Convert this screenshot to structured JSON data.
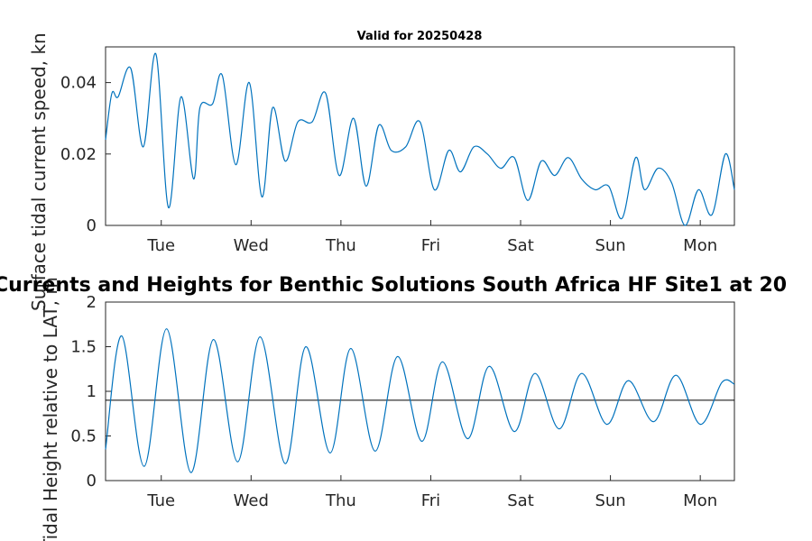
{
  "page": {
    "title": "Valid for 20250428",
    "main_title": "Currents and Heights for Benthic Solutions South Africa HF Site1 at 20"
  },
  "colors": {
    "series": "#0072bd",
    "reference_line": "#000000",
    "axes": "#262626",
    "background": "#ffffff"
  },
  "chart_data": [
    {
      "type": "line",
      "title": "Valid for 20250428",
      "ylabel": "Surface tidal current speed, kn",
      "xlabel": "",
      "x_unit": "days from start of window",
      "xlim": [
        0,
        7.0
      ],
      "ylim": [
        0,
        0.05
      ],
      "yticks": [
        0,
        0.02,
        0.04
      ],
      "ytick_labels": [
        "0",
        "0.02",
        "0.04"
      ],
      "xticks": [
        0.62,
        1.62,
        2.62,
        3.62,
        4.62,
        5.62,
        6.62
      ],
      "xtick_labels": [
        "Tue",
        "Wed",
        "Thu",
        "Fri",
        "Sat",
        "Sun",
        "Mon"
      ],
      "grid": false,
      "series": [
        {
          "x": [
            0,
            0.07,
            0.14,
            0.28,
            0.42,
            0.56,
            0.7,
            0.84,
            0.98,
            1.05,
            1.19,
            1.3,
            1.45,
            1.6,
            1.74,
            1.86,
            2.0,
            2.14,
            2.3,
            2.45,
            2.6,
            2.76,
            2.9,
            3.04,
            3.18,
            3.34,
            3.5,
            3.66,
            3.82,
            3.95,
            4.1,
            4.25,
            4.4,
            4.55,
            4.7,
            4.85,
            5.0,
            5.15,
            5.3,
            5.45,
            5.6,
            5.75,
            5.9,
            6.0,
            6.15,
            6.3,
            6.45,
            6.6,
            6.75,
            6.9,
            7.0
          ],
          "y": [
            0.024,
            0.037,
            0.036,
            0.044,
            0.022,
            0.048,
            0.005,
            0.036,
            0.013,
            0.033,
            0.034,
            0.042,
            0.017,
            0.04,
            0.008,
            0.033,
            0.018,
            0.029,
            0.029,
            0.037,
            0.014,
            0.03,
            0.011,
            0.028,
            0.021,
            0.022,
            0.029,
            0.01,
            0.021,
            0.015,
            0.022,
            0.02,
            0.016,
            0.019,
            0.007,
            0.018,
            0.014,
            0.019,
            0.013,
            0.01,
            0.011,
            0.002,
            0.019,
            0.01,
            0.016,
            0.012,
            0.0,
            0.01,
            0.003,
            0.02,
            0.01
          ]
        }
      ]
    },
    {
      "type": "line",
      "title": "Currents and Heights for Benthic Solutions South Africa HF Site1 at 20",
      "ylabel": "Tidal Height relative to LAT, m",
      "xlabel": "",
      "x_unit": "days from start of window",
      "xlim": [
        0,
        7.0
      ],
      "ylim": [
        0,
        2
      ],
      "yticks": [
        0,
        0.5,
        1,
        1.5,
        2
      ],
      "ytick_labels": [
        "0",
        "0.5",
        "1",
        "1.5",
        "2"
      ],
      "xticks": [
        0.62,
        1.62,
        2.62,
        3.62,
        4.62,
        5.62,
        6.62
      ],
      "xtick_labels": [
        "Tue",
        "Wed",
        "Thu",
        "Fri",
        "Sat",
        "Sun",
        "Mon"
      ],
      "grid": false,
      "reference_line_y": 0.9,
      "series": [
        {
          "x": [
            0,
            0.18,
            0.43,
            0.68,
            0.95,
            1.2,
            1.47,
            1.72,
            2.0,
            2.23,
            2.5,
            2.73,
            3.0,
            3.25,
            3.52,
            3.75,
            4.03,
            4.27,
            4.55,
            4.78,
            5.05,
            5.3,
            5.58,
            5.82,
            6.1,
            6.35,
            6.62,
            6.86,
            7.0
          ],
          "y": [
            0.35,
            1.62,
            0.16,
            1.7,
            0.09,
            1.58,
            0.21,
            1.61,
            0.19,
            1.5,
            0.31,
            1.48,
            0.33,
            1.39,
            0.44,
            1.33,
            0.47,
            1.28,
            0.55,
            1.2,
            0.58,
            1.2,
            0.63,
            1.12,
            0.66,
            1.18,
            0.63,
            1.1,
            1.08
          ]
        }
      ]
    }
  ]
}
